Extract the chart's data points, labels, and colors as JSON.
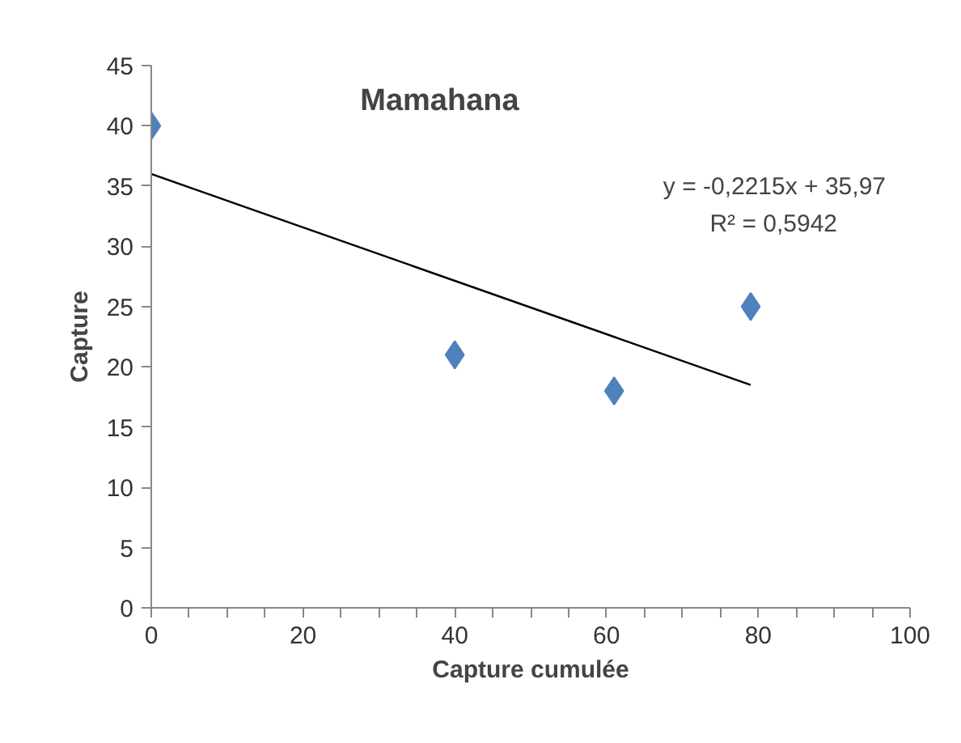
{
  "chart_data": {
    "type": "scatter",
    "title": "Mamahana",
    "xlabel": "Capture cumulée",
    "ylabel": "Capture",
    "annotations": [
      "y = -0,2215x + 35,97",
      "R² = 0,5942"
    ],
    "series": [
      {
        "color": "#4f81bd",
        "x": [
          0,
          40,
          61,
          79
        ],
        "values": [
          40,
          21,
          18,
          25
        ],
        "marker": "diamond"
      },
      {
        "type": "line",
        "color": "#000000",
        "x": [
          0,
          79
        ],
        "values": [
          36,
          18.5
        ],
        "marker": "none"
      }
    ],
    "xlim": [
      0,
      100
    ],
    "xticks": [
      0,
      20,
      40,
      60,
      80,
      100
    ],
    "ylim": [
      0,
      45
    ],
    "yticks": [
      0,
      5,
      10,
      15,
      20,
      25,
      30,
      35,
      40,
      45
    ],
    "grid": false,
    "line_style": "solid"
  }
}
